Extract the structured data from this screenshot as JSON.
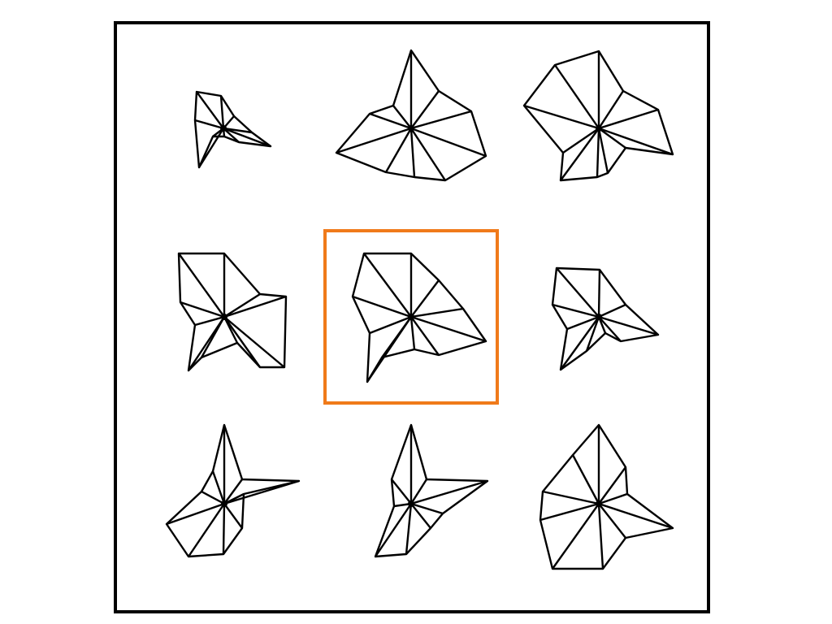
{
  "diagram": {
    "grid": {
      "rows": 3,
      "cols": 3
    },
    "frame_color": "#000000",
    "line_color": "#000000",
    "highlight_color": "#f07a1a",
    "highlighted_cell": 4
  }
}
